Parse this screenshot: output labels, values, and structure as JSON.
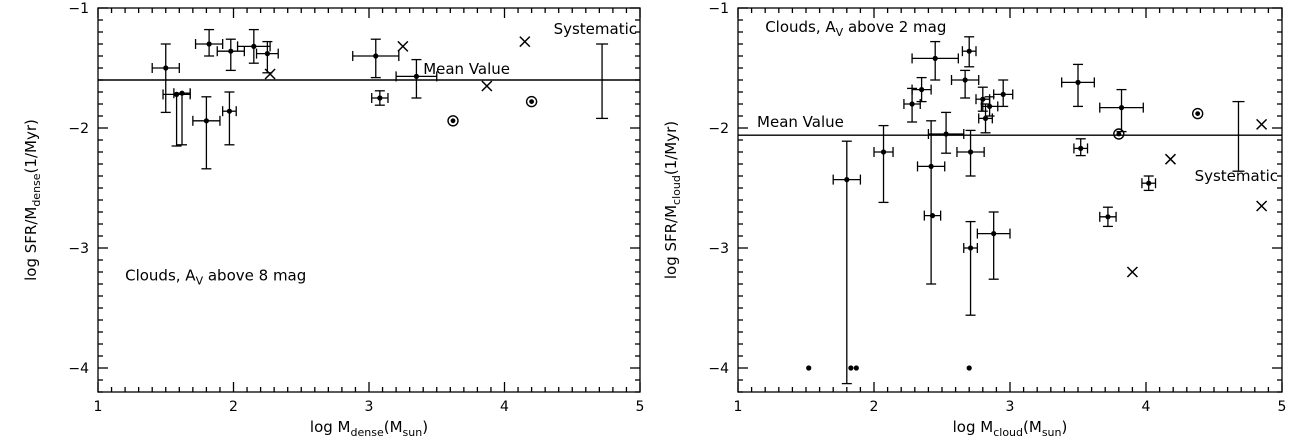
{
  "chart_data": [
    {
      "type": "scatter",
      "xlabel": {
        "main": "log M",
        "sub": "dense",
        "tail": "(M",
        "sub2": "sun",
        "end": ")"
      },
      "ylabel": {
        "main": "log SFR/M",
        "sub": "dense",
        "tail": "(1/Myr)"
      },
      "xlim": [
        1,
        5
      ],
      "ylim": [
        -4.2,
        -1
      ],
      "xticks": [
        1,
        2,
        3,
        4,
        5
      ],
      "yticks": [
        -1,
        -2,
        -3,
        -4
      ],
      "grid": false,
      "annotation": {
        "pre": "Clouds, A",
        "sub": "V",
        "post": " above 8 mag"
      },
      "mean_label": "Mean Value",
      "systematic_label": "Systematic",
      "mean_value": -1.6,
      "systematic": {
        "x": 4.72,
        "low": -1.92,
        "high": -1.3
      },
      "points": [
        {
          "x": 1.5,
          "y": -1.5,
          "xerr": 0.1,
          "yerr_low": 0.37,
          "yerr_high": 0.2
        },
        {
          "x": 1.58,
          "y": -1.72,
          "xerr": 0.1,
          "yerr_low": 0.43,
          "yerr_high": 0.0
        },
        {
          "x": 1.62,
          "y": -1.71,
          "xerr": 0.06,
          "yerr_low": 0.43,
          "yerr_high": 0.0
        },
        {
          "x": 1.8,
          "y": -1.94,
          "xerr": 0.1,
          "yerr_low": 0.4,
          "yerr_high": 0.2
        },
        {
          "x": 1.82,
          "y": -1.3,
          "xerr": 0.1,
          "yerr_low": 0.1,
          "yerr_high": 0.12
        },
        {
          "x": 1.97,
          "y": -1.86,
          "xerr": 0.05,
          "yerr_low": 0.28,
          "yerr_high": 0.16
        },
        {
          "x": 1.98,
          "y": -1.36,
          "xerr": 0.1,
          "yerr_low": 0.16,
          "yerr_high": 0.1
        },
        {
          "x": 2.15,
          "y": -1.32,
          "xerr": 0.12,
          "yerr_low": 0.14,
          "yerr_high": 0.14
        },
        {
          "x": 2.25,
          "y": -1.38,
          "xerr": 0.08,
          "yerr_low": 0.16,
          "yerr_high": 0.1
        },
        {
          "x": 3.05,
          "y": -1.4,
          "xerr": 0.17,
          "yerr_low": 0.18,
          "yerr_high": 0.14
        },
        {
          "x": 3.08,
          "y": -1.75,
          "xerr": 0.06,
          "yerr_low": 0.06,
          "yerr_high": 0.06
        },
        {
          "x": 3.35,
          "y": -1.57,
          "xerr": 0.15,
          "yerr_low": 0.18,
          "yerr_high": 0.14
        }
      ],
      "circled_points": [
        {
          "x": 3.62,
          "y": -1.94
        },
        {
          "x": 4.2,
          "y": -1.78
        }
      ],
      "cross_points": [
        {
          "x": 2.27,
          "y": -1.55
        },
        {
          "x": 3.25,
          "y": -1.32
        },
        {
          "x": 3.87,
          "y": -1.65
        },
        {
          "x": 4.15,
          "y": -1.28
        }
      ],
      "lower_points": []
    },
    {
      "type": "scatter",
      "xlabel": {
        "main": "log M",
        "sub": "cloud",
        "tail": "(M",
        "sub2": "sun",
        "end": ")"
      },
      "ylabel": {
        "main": "log SFR/M",
        "sub": "cloud",
        "tail": "(1/Myr)"
      },
      "xlim": [
        1,
        5
      ],
      "ylim": [
        -4.2,
        -1
      ],
      "xticks": [
        1,
        2,
        3,
        4,
        5
      ],
      "yticks": [
        -1,
        -2,
        -3,
        -4
      ],
      "grid": false,
      "annotation": {
        "pre": "Clouds, A",
        "sub": "V",
        "post": " above 2 mag"
      },
      "mean_label": "Mean Value",
      "systematic_label": "Systematic",
      "mean_value": -2.06,
      "systematic": {
        "x": 4.68,
        "low": -2.36,
        "high": -1.78
      },
      "points": [
        {
          "x": 1.8,
          "y": -2.43,
          "xerr": 0.1,
          "yerr_low": 1.7,
          "yerr_high": 0.32
        },
        {
          "x": 2.07,
          "y": -2.2,
          "xerr": 0.07,
          "yerr_low": 0.42,
          "yerr_high": 0.22
        },
        {
          "x": 2.28,
          "y": -1.8,
          "xerr": 0.06,
          "yerr_low": 0.15,
          "yerr_high": 0.13
        },
        {
          "x": 2.35,
          "y": -1.68,
          "xerr": 0.07,
          "yerr_low": 0.1,
          "yerr_high": 0.1
        },
        {
          "x": 2.42,
          "y": -2.32,
          "xerr": 0.1,
          "yerr_low": 0.98,
          "yerr_high": 0.38
        },
        {
          "x": 2.43,
          "y": -2.73,
          "xerr": 0.06,
          "yerr_low": 0.0,
          "yerr_high": 0.0
        },
        {
          "x": 2.45,
          "y": -1.42,
          "xerr": 0.17,
          "yerr_low": 0.18,
          "yerr_high": 0.14
        },
        {
          "x": 2.53,
          "y": -2.05,
          "xerr": 0.13,
          "yerr_low": 0.16,
          "yerr_high": 0.18
        },
        {
          "x": 2.67,
          "y": -1.6,
          "xerr": 0.1,
          "yerr_low": 0.15,
          "yerr_high": 0.08
        },
        {
          "x": 2.7,
          "y": -1.36,
          "xerr": 0.05,
          "yerr_low": 0.13,
          "yerr_high": 0.12
        },
        {
          "x": 2.71,
          "y": -2.2,
          "xerr": 0.1,
          "yerr_low": 0.2,
          "yerr_high": 0.18
        },
        {
          "x": 2.71,
          "y": -3.0,
          "xerr": 0.05,
          "yerr_low": 0.56,
          "yerr_high": 0.22
        },
        {
          "x": 2.8,
          "y": -1.76,
          "xerr": 0.05,
          "yerr_low": 0.1,
          "yerr_high": 0.1
        },
        {
          "x": 2.82,
          "y": -1.92,
          "xerr": 0.05,
          "yerr_low": 0.12,
          "yerr_high": 0.12
        },
        {
          "x": 2.85,
          "y": -1.82,
          "xerr": 0.06,
          "yerr_low": 0.08,
          "yerr_high": 0.08
        },
        {
          "x": 2.88,
          "y": -2.88,
          "xerr": 0.12,
          "yerr_low": 0.38,
          "yerr_high": 0.18
        },
        {
          "x": 2.95,
          "y": -1.72,
          "xerr": 0.07,
          "yerr_low": 0.1,
          "yerr_high": 0.12
        },
        {
          "x": 3.5,
          "y": -1.62,
          "xerr": 0.12,
          "yerr_low": 0.2,
          "yerr_high": 0.15
        },
        {
          "x": 3.52,
          "y": -2.17,
          "xerr": 0.05,
          "yerr_low": 0.06,
          "yerr_high": 0.08
        },
        {
          "x": 3.72,
          "y": -2.74,
          "xerr": 0.06,
          "yerr_low": 0.08,
          "yerr_high": 0.08
        },
        {
          "x": 3.82,
          "y": -1.83,
          "xerr": 0.16,
          "yerr_low": 0.2,
          "yerr_high": 0.15
        },
        {
          "x": 4.02,
          "y": -2.46,
          "xerr": 0.05,
          "yerr_low": 0.06,
          "yerr_high": 0.06
        }
      ],
      "circled_points": [
        {
          "x": 3.8,
          "y": -2.05
        },
        {
          "x": 4.38,
          "y": -1.88
        }
      ],
      "cross_points": [
        {
          "x": 3.9,
          "y": -3.2
        },
        {
          "x": 4.18,
          "y": -2.26
        },
        {
          "x": 4.85,
          "y": -1.97
        },
        {
          "x": 4.85,
          "y": -2.65
        }
      ],
      "lower_points": [
        {
          "x": 1.52,
          "y": -4.0
        },
        {
          "x": 1.83,
          "y": -4.0
        },
        {
          "x": 1.87,
          "y": -4.0
        },
        {
          "x": 2.7,
          "y": -4.0
        }
      ]
    }
  ]
}
